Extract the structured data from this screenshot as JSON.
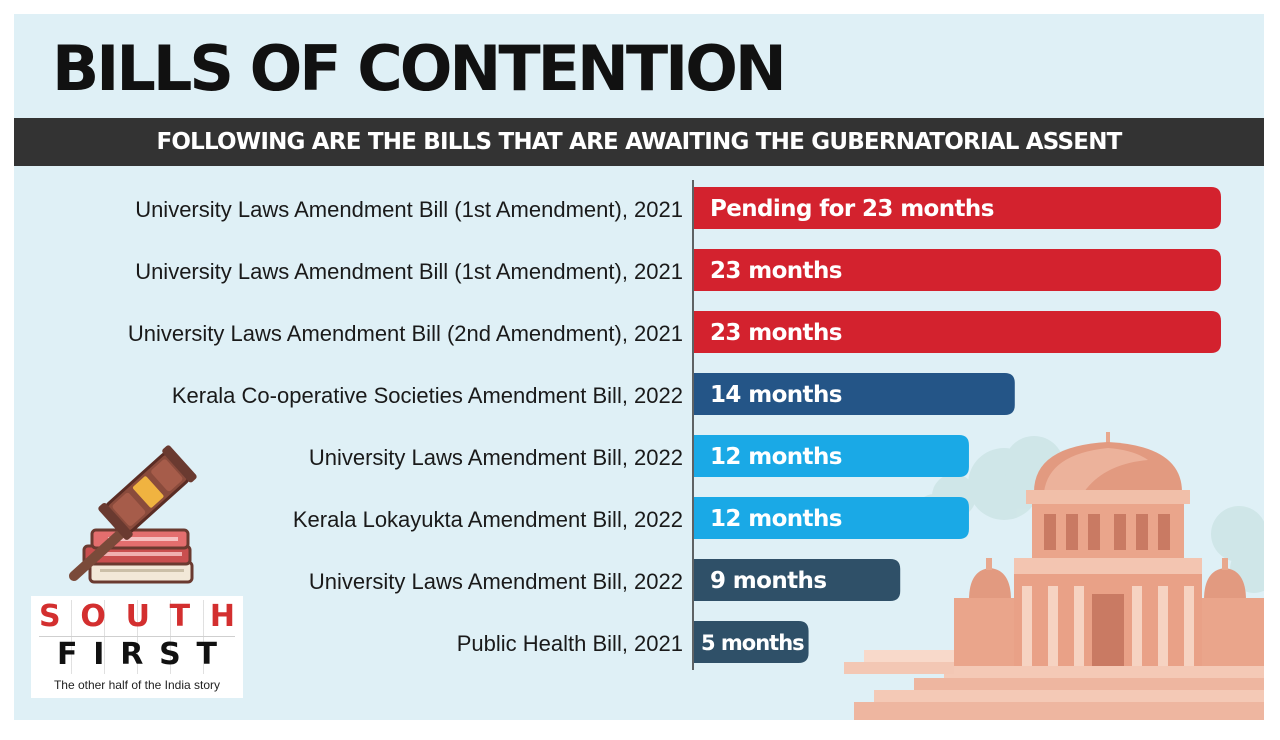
{
  "title": "BILLS OF CONTENTION",
  "subtitle": "FOLLOWING ARE THE BILLS THAT ARE AWAITING THE GUBERNATORIAL ASSENT",
  "logo": {
    "line1": [
      "S",
      "O",
      "U",
      "T",
      "H"
    ],
    "line2": [
      "F",
      "I",
      "R",
      "S",
      "T"
    ],
    "tagline": "The other half of the India story"
  },
  "icons": [
    "gavel-icon",
    "books-icon",
    "court-building-icon"
  ],
  "colors": {
    "background": "#dff0f6",
    "banner": "#333333",
    "red": "#d3222e",
    "navy": "#245587",
    "sky": "#1aa9e6",
    "slate": "#2f5068"
  },
  "chart_data": {
    "type": "bar",
    "orientation": "horizontal",
    "unit": "months",
    "grid": false,
    "xlim": [
      0,
      23
    ],
    "categories": [
      "University Laws Amendment Bill (1st Amendment), 2021",
      "University Laws Amendment Bill (1st Amendment), 2021",
      "University Laws Amendment Bill (2nd Amendment), 2021",
      "Kerala Co-operative Societies Amendment Bill, 2022",
      "University Laws Amendment Bill, 2022",
      "Kerala Lokayukta Amendment Bill, 2022",
      "University Laws Amendment Bill, 2022",
      "Public Health Bill, 2021"
    ],
    "values": [
      23,
      23,
      23,
      14,
      12,
      12,
      9,
      5
    ],
    "data_labels": [
      "Pending for 23 months",
      "23 months",
      "23 months",
      "14 months",
      "12 months",
      "12 months",
      "9 months",
      "5 months"
    ],
    "bar_colors": [
      "#d3222e",
      "#d3222e",
      "#d3222e",
      "#245587",
      "#1aa9e6",
      "#1aa9e6",
      "#2f5068",
      "#2f5068"
    ]
  }
}
